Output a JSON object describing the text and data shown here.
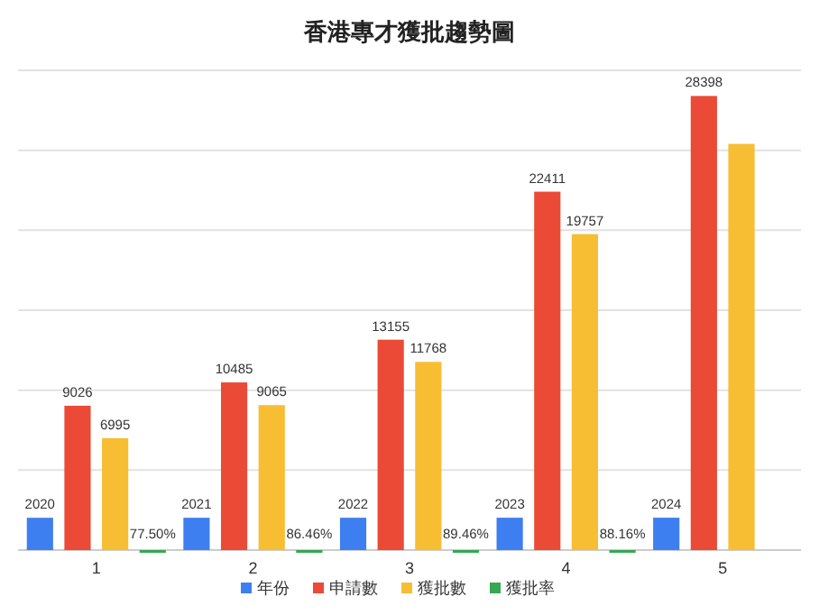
{
  "chart_data": {
    "type": "bar",
    "title": "香港專才獲批趨勢圖",
    "categories": [
      "1",
      "2",
      "3",
      "4",
      "5"
    ],
    "series": [
      {
        "name": "年份",
        "color": "#3d7ff0",
        "values": [
          2020,
          2021,
          2022,
          2023,
          2024
        ],
        "value_labels": [
          "2020",
          "2021",
          "2022",
          "2023",
          "2024"
        ]
      },
      {
        "name": "申請數",
        "color": "#ea4a36",
        "values": [
          9026,
          10485,
          13155,
          22411,
          28398
        ],
        "value_labels": [
          "9026",
          "10485",
          "13155",
          "22411",
          "28398"
        ]
      },
      {
        "name": "獲批數",
        "color": "#f7bd33",
        "values": [
          6995,
          9065,
          11768,
          19757,
          25400
        ],
        "value_labels": [
          "6995",
          "9065",
          "11768",
          "19757",
          null
        ]
      },
      {
        "name": "獲批率",
        "color": "#34a853",
        "values": [
          0.775,
          0.8646,
          0.8946,
          0.8816,
          null
        ],
        "value_labels": [
          "77.50%",
          "86.46%",
          "89.46%",
          "88.16%",
          null
        ]
      }
    ],
    "ylim": [
      0,
      30000
    ],
    "yticks": [
      {
        "value": 0,
        "label": null
      },
      {
        "value": 5000,
        "label": null
      },
      {
        "value": 10000,
        "label": null
      },
      {
        "value": 15000,
        "label": null
      },
      {
        "value": 20000,
        "label": null
      },
      {
        "value": 25000,
        "label": null
      },
      {
        "value": 30000,
        "label": null
      }
    ],
    "tick_labels": "x",
    "grid": "y",
    "legend": "bottom"
  }
}
